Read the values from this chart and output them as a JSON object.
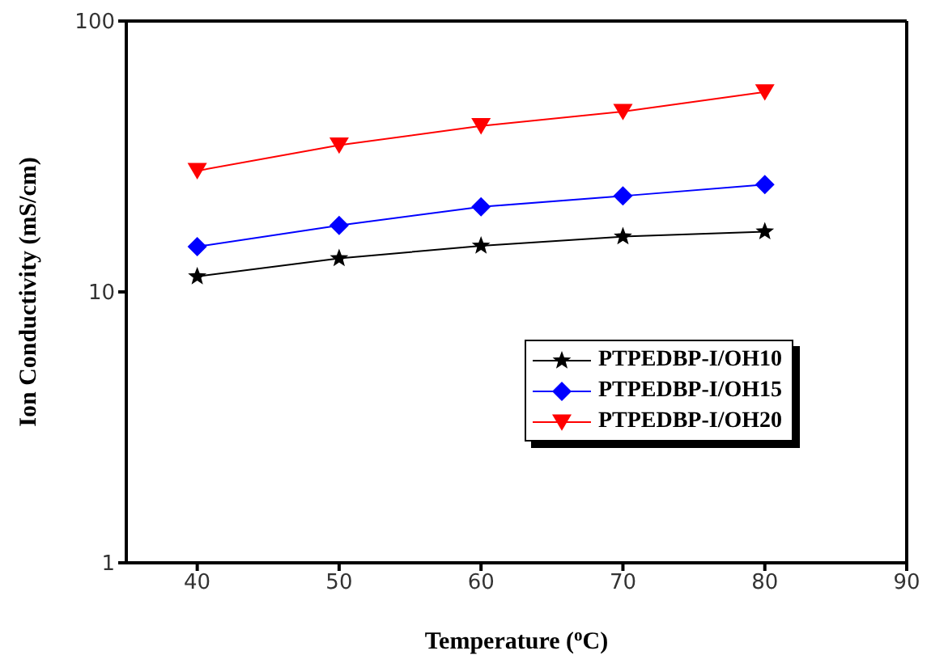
{
  "chart_data": {
    "type": "line",
    "xlabel": "Temperature ($^{o}$C)",
    "ylabel": "Ion Conductivity (mS/cm)",
    "x": [
      40,
      50,
      60,
      70,
      80
    ],
    "series": [
      {
        "name": "PTPEDBP-I/OH10",
        "color": "#000000",
        "marker": "star",
        "values": [
          11.4,
          13.3,
          14.8,
          16.0,
          16.7
        ]
      },
      {
        "name": "PTPEDBP-I/OH15",
        "color": "#0000ff",
        "marker": "diamond",
        "values": [
          14.7,
          17.6,
          20.6,
          22.6,
          24.9
        ]
      },
      {
        "name": "PTPEDBP-I/OH20",
        "color": "#ff0000",
        "marker": "triangle",
        "values": [
          28.0,
          34.8,
          41.0,
          46.3,
          54.7
        ]
      }
    ],
    "xlim": [
      35,
      90
    ],
    "xticks": [
      40,
      50,
      60,
      70,
      80,
      90
    ],
    "ylim": [
      1,
      100
    ],
    "yticks": [
      1,
      10,
      100
    ],
    "log": true,
    "grid": false,
    "legend": "right"
  }
}
